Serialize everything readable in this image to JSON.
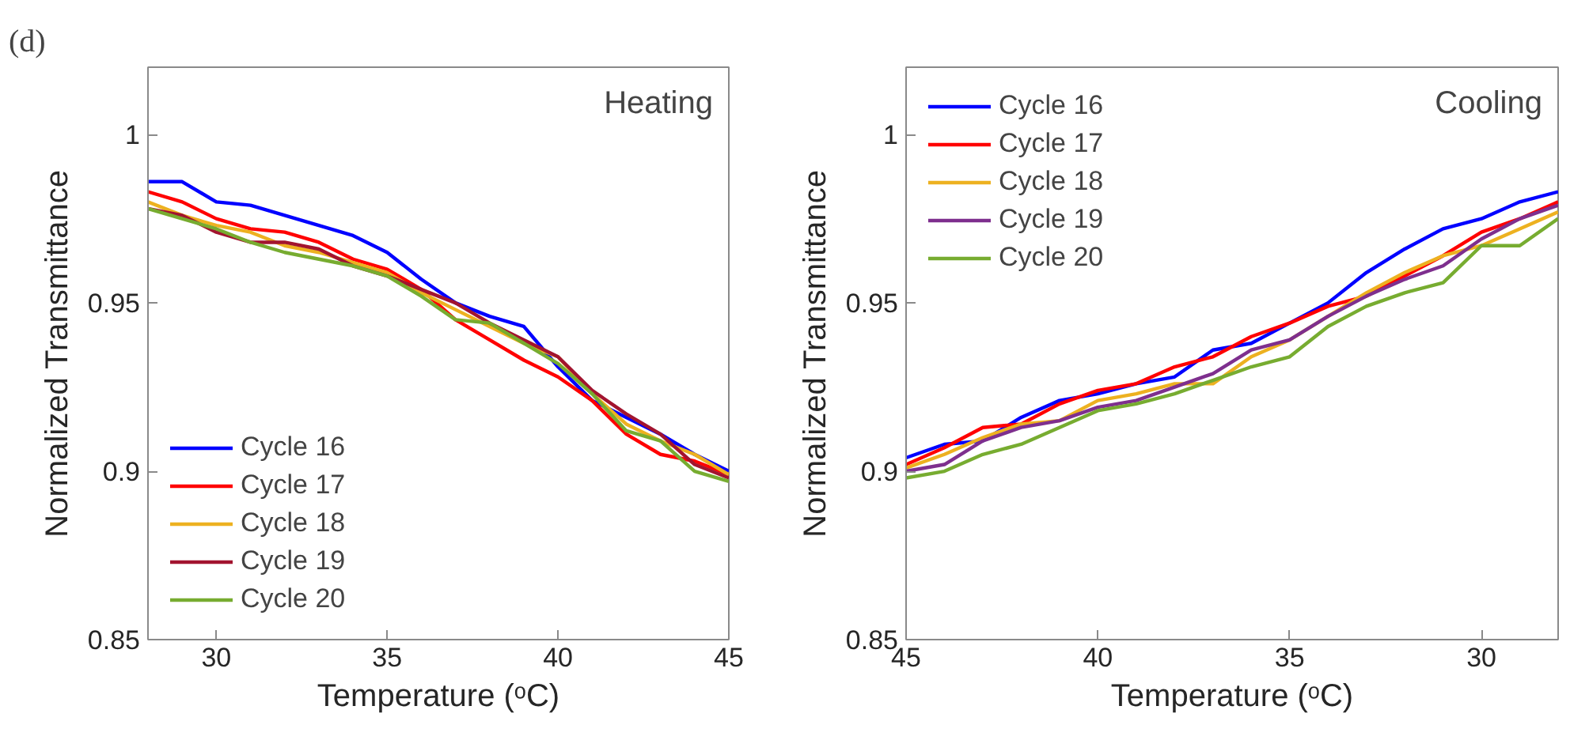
{
  "chart_data": [
    {
      "type": "line",
      "title": "(d)",
      "xlabel": "Temperature (ᵒC)",
      "ylabel": "Normalized Transmittance",
      "annotations": [
        "Heating"
      ],
      "x": [
        28,
        29,
        30,
        31,
        32,
        33,
        34,
        35,
        36,
        37,
        38,
        39,
        40,
        41,
        42,
        43,
        44,
        45
      ],
      "xlim": [
        28,
        45
      ],
      "xticks": [
        30,
        35,
        40,
        45
      ],
      "ylim": [
        0.85,
        1.02
      ],
      "yticks": [
        0.85,
        0.9,
        0.95,
        1
      ],
      "grid": false,
      "legend": "bottom left",
      "series": [
        {
          "name": "Cycle 16",
          "color": "#0000ff",
          "values": [
            0.986,
            0.986,
            0.98,
            0.979,
            0.976,
            0.973,
            0.97,
            0.965,
            0.957,
            0.95,
            0.946,
            0.943,
            0.931,
            0.921,
            0.916,
            0.911,
            0.905,
            0.9
          ]
        },
        {
          "name": "Cycle 17",
          "color": "#ff0000",
          "values": [
            0.983,
            0.98,
            0.975,
            0.972,
            0.971,
            0.968,
            0.963,
            0.96,
            0.954,
            0.945,
            0.939,
            0.933,
            0.928,
            0.921,
            0.911,
            0.905,
            0.903,
            0.899
          ]
        },
        {
          "name": "Cycle 18",
          "color": "#edb120",
          "values": [
            0.98,
            0.976,
            0.973,
            0.971,
            0.967,
            0.965,
            0.962,
            0.959,
            0.953,
            0.948,
            0.943,
            0.938,
            0.934,
            0.923,
            0.914,
            0.909,
            0.905,
            0.899
          ]
        },
        {
          "name": "Cycle 19",
          "color": "#a2142f",
          "values": [
            0.978,
            0.976,
            0.971,
            0.968,
            0.968,
            0.966,
            0.961,
            0.958,
            0.954,
            0.95,
            0.944,
            0.939,
            0.934,
            0.924,
            0.917,
            0.911,
            0.902,
            0.898
          ]
        },
        {
          "name": "Cycle 20",
          "color": "#77ac30",
          "values": [
            0.978,
            0.975,
            0.972,
            0.968,
            0.965,
            0.963,
            0.961,
            0.958,
            0.952,
            0.945,
            0.944,
            0.938,
            0.932,
            0.923,
            0.912,
            0.909,
            0.9,
            0.897
          ]
        }
      ]
    },
    {
      "type": "line",
      "xlabel": "Temperature (ᵒC)",
      "ylabel": "Normalized Transmittance",
      "annotations": [
        "Cooling"
      ],
      "x": [
        45,
        44,
        43,
        42,
        41,
        40,
        39,
        38,
        37,
        36,
        35,
        34,
        33,
        32,
        31,
        30,
        29,
        28
      ],
      "xlim": [
        45,
        28
      ],
      "xticks": [
        45,
        40,
        35,
        30
      ],
      "ylim": [
        0.85,
        1.02
      ],
      "yticks": [
        0.85,
        0.9,
        0.95,
        1
      ],
      "grid": false,
      "legend": "top left",
      "series": [
        {
          "name": "Cycle 16",
          "color": "#0000ff",
          "values": [
            0.904,
            0.908,
            0.909,
            0.916,
            0.921,
            0.923,
            0.926,
            0.928,
            0.936,
            0.938,
            0.944,
            0.95,
            0.959,
            0.966,
            0.972,
            0.975,
            0.98,
            0.983
          ]
        },
        {
          "name": "Cycle 17",
          "color": "#ff0000",
          "values": [
            0.902,
            0.907,
            0.913,
            0.914,
            0.92,
            0.924,
            0.926,
            0.931,
            0.934,
            0.94,
            0.944,
            0.949,
            0.952,
            0.958,
            0.964,
            0.971,
            0.975,
            0.98
          ]
        },
        {
          "name": "Cycle 18",
          "color": "#edb120",
          "values": [
            0.901,
            0.905,
            0.91,
            0.914,
            0.915,
            0.921,
            0.923,
            0.926,
            0.926,
            0.934,
            0.939,
            0.946,
            0.953,
            0.959,
            0.964,
            0.967,
            0.972,
            0.977
          ]
        },
        {
          "name": "Cycle 19",
          "color": "#7e2f8e",
          "values": [
            0.9,
            0.902,
            0.909,
            0.913,
            0.915,
            0.919,
            0.921,
            0.925,
            0.929,
            0.936,
            0.939,
            0.946,
            0.952,
            0.957,
            0.961,
            0.969,
            0.975,
            0.979
          ]
        },
        {
          "name": "Cycle 20",
          "color": "#77ac30",
          "values": [
            0.898,
            0.9,
            0.905,
            0.908,
            0.913,
            0.918,
            0.92,
            0.923,
            0.927,
            0.931,
            0.934,
            0.943,
            0.949,
            0.953,
            0.956,
            0.967,
            0.967,
            0.975
          ]
        }
      ]
    }
  ]
}
